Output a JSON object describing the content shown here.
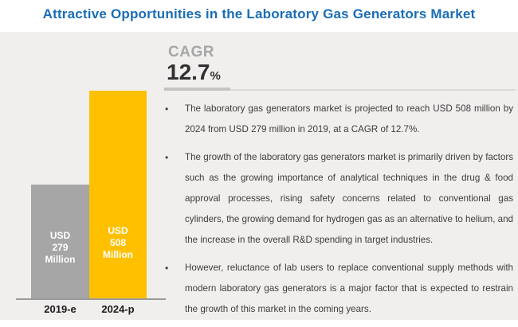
{
  "title": "Attractive Opportunities in the Laboratory Gas Generators Market",
  "cagr": {
    "label": "CAGR",
    "value": "12.7",
    "percent_sign": "%"
  },
  "chart_data": {
    "type": "bar",
    "categories": [
      "2019-e",
      "2024-p"
    ],
    "values": [
      279,
      508
    ],
    "unit": "USD Million",
    "bar_labels": [
      "USD\n279\nMillion",
      "USD\n508\nMillion"
    ],
    "bar_colors": [
      "#a6a6a6",
      "#ffc000"
    ],
    "ylim": [
      0,
      508
    ],
    "grid": false,
    "legend": "none"
  },
  "bullets": [
    {
      "marker": "•",
      "text": "The laboratory gas generators market is projected to reach USD 508 million by 2024 from USD 279 million in 2019, at a CAGR of 12.7%."
    },
    {
      "marker": "•",
      "text": "The growth of the laboratory gas generators market is primarily driven by factors such as the growing importance of analytical techniques in the drug & food approval processes, rising safety concerns related to conventional gas cylinders, the growing demand for hydrogen gas as an alternative to helium, and the increase in the overall R&D spending in target industries."
    },
    {
      "marker": "•",
      "text": "However, reluctance of lab users to replace conventional supply methods with modern laboratory gas generators is a major factor that is expected to restrain the growth of this market in the coming years."
    }
  ],
  "colors": {
    "title_blue": "#1a6db6",
    "panel_background": "#f1efee",
    "bar_gray": "#a6a6a6",
    "bar_yellow": "#ffc000",
    "cagr_label_gray": "#a7a7a7",
    "cagr_value_dark": "#303030",
    "divider_gray": "#dcdbd9",
    "axis_line_gray": "#9a9a9a",
    "bullet_text_gray": "#3d3d3d"
  }
}
